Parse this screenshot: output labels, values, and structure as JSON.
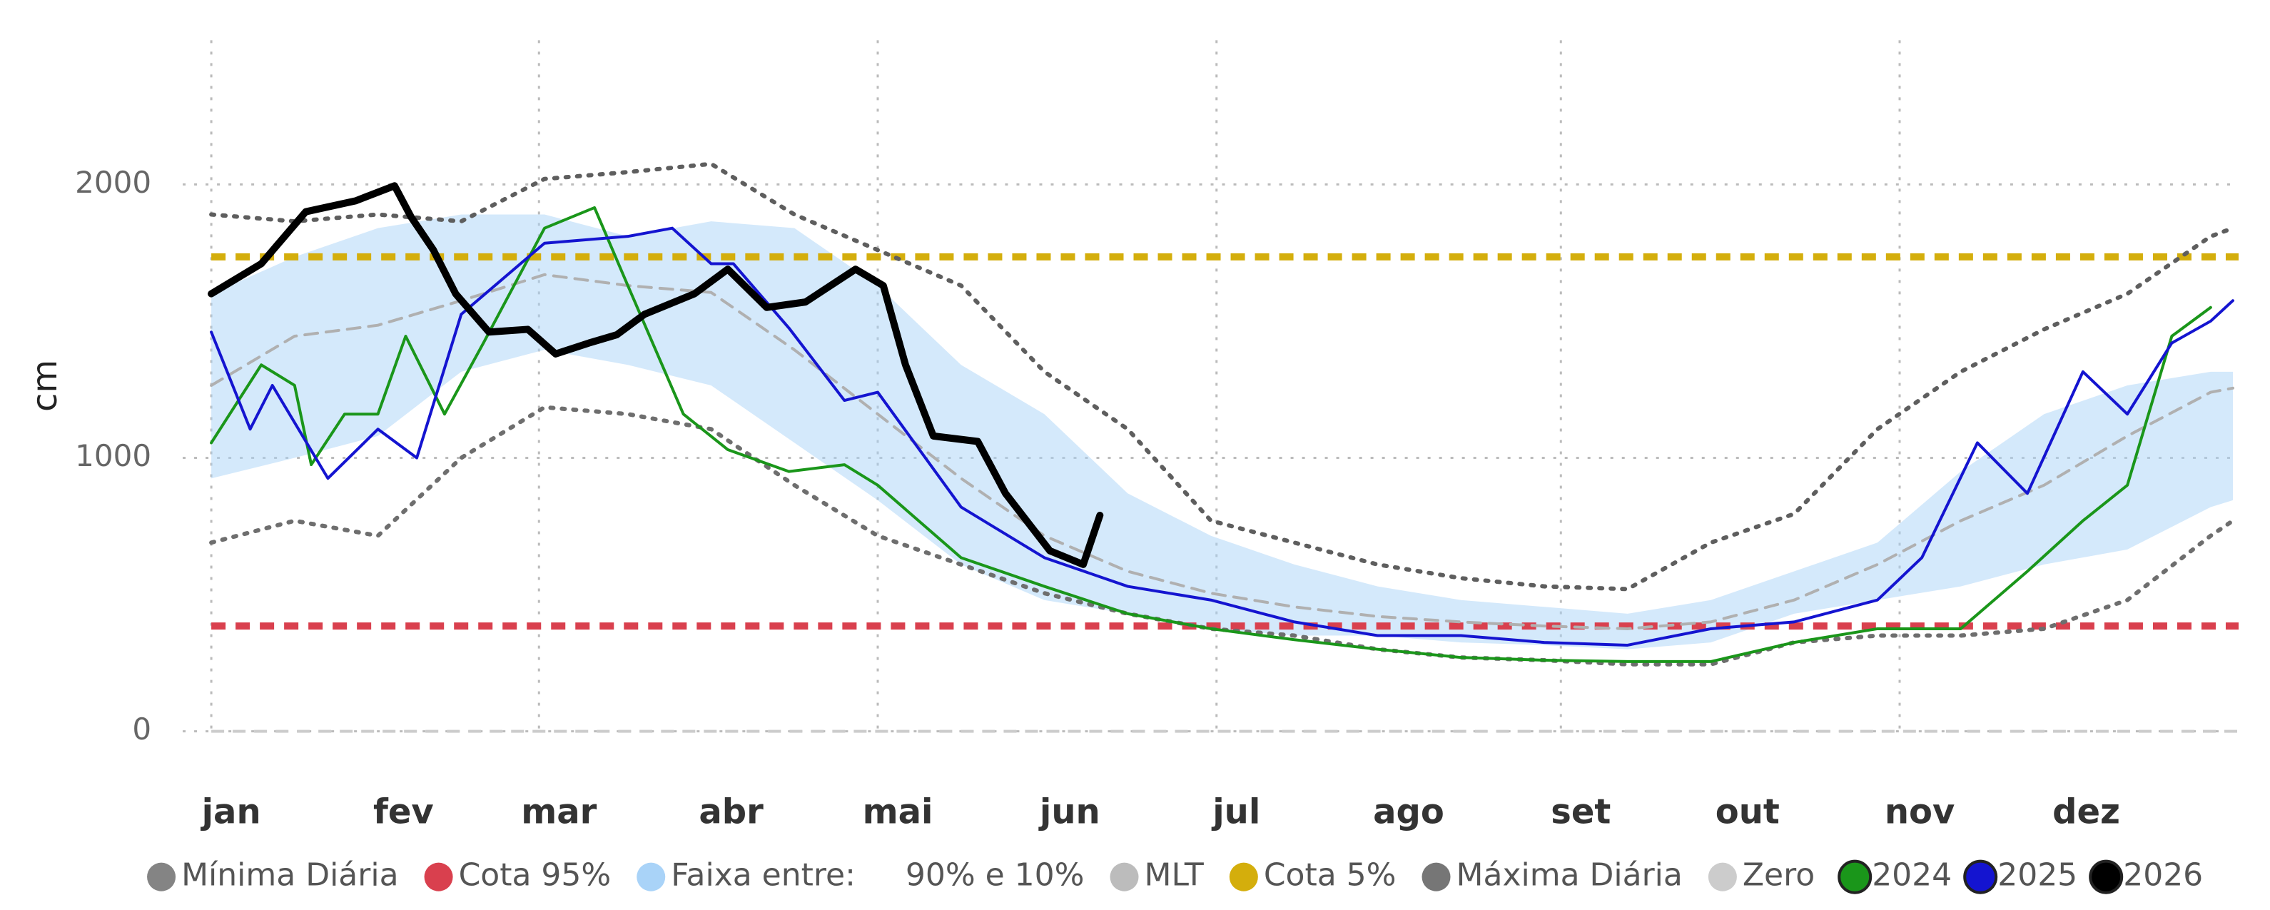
{
  "chart_data": {
    "type": "line",
    "y_label": "cm",
    "xlim": [
      1,
      365
    ],
    "xticks": [
      {
        "value": 1,
        "label": "jan"
      },
      {
        "value": 32,
        "label": "fev"
      },
      {
        "value": 60,
        "label": "mar"
      },
      {
        "value": 91,
        "label": "abr"
      },
      {
        "value": 121,
        "label": "mai"
      },
      {
        "value": 152,
        "label": "jun"
      },
      {
        "value": 182,
        "label": "jul"
      },
      {
        "value": 213,
        "label": "ago"
      },
      {
        "value": 244,
        "label": "set"
      },
      {
        "value": 274,
        "label": "out"
      },
      {
        "value": 305,
        "label": "nov"
      },
      {
        "value": 335,
        "label": "dez"
      }
    ],
    "ylim": [
      0,
      2500
    ],
    "yticks": [
      0,
      1000,
      2000
    ],
    "grid": true,
    "legend": "bottom",
    "series": [
      {
        "name": "Mínima Diária",
        "kind": "line",
        "dash": "dotted",
        "color": "#6e6e6e",
        "x": [
          1,
          16,
          31,
          46,
          61,
          76,
          91,
          106,
          121,
          136,
          151,
          166,
          181,
          196,
          211,
          226,
          241,
          256,
          271,
          286,
          301,
          316,
          331,
          346,
          361,
          365
        ],
        "values": [
          690,
          770,
          715,
          1000,
          1185,
          1160,
          1105,
          900,
          715,
          610,
          505,
          430,
          375,
          350,
          300,
          270,
          260,
          245,
          245,
          325,
          350,
          350,
          375,
          480,
          715,
          770
        ]
      },
      {
        "name": "Cota 95%",
        "kind": "hline",
        "dash": "dashed",
        "color": "#d9404e",
        "value": 385
      },
      {
        "name": "Faixa entre:     90% e 10%",
        "kind": "band",
        "color": "#a9d3f8",
        "x": [
          1,
          16,
          31,
          46,
          61,
          76,
          91,
          106,
          121,
          136,
          151,
          166,
          181,
          196,
          211,
          226,
          241,
          256,
          271,
          286,
          301,
          316,
          331,
          346,
          361,
          365
        ],
        "values": [
          1600,
          1735,
          1840,
          1890,
          1890,
          1810,
          1865,
          1840,
          1630,
          1340,
          1160,
          870,
          715,
          610,
          530,
          480,
          455,
          430,
          480,
          585,
          690,
          950,
          1160,
          1265,
          1315,
          1315
        ],
        "lower": [
          925,
          1000,
          1080,
          1315,
          1395,
          1340,
          1265,
          1055,
          845,
          610,
          480,
          430,
          375,
          350,
          350,
          325,
          315,
          300,
          325,
          430,
          480,
          530,
          610,
          665,
          820,
          845
        ]
      },
      {
        "name": "MLT",
        "kind": "line",
        "dash": "dashed",
        "color": "#b0b0b0",
        "x": [
          1,
          16,
          31,
          46,
          61,
          76,
          91,
          106,
          121,
          136,
          151,
          166,
          181,
          196,
          211,
          226,
          241,
          256,
          271,
          286,
          301,
          316,
          331,
          346,
          361,
          365
        ],
        "values": [
          1265,
          1445,
          1485,
          1575,
          1670,
          1630,
          1605,
          1395,
          1160,
          925,
          715,
          585,
          505,
          455,
          420,
          400,
          385,
          375,
          400,
          480,
          610,
          770,
          900,
          1080,
          1240,
          1255
        ]
      },
      {
        "name": "Cota 5%",
        "kind": "hline",
        "dash": "dashed",
        "color": "#d4ae0c",
        "value": 1735
      },
      {
        "name": "Máxima Diária",
        "kind": "line",
        "dash": "dotted",
        "color": "#5e5e5e",
        "x": [
          1,
          16,
          31,
          46,
          61,
          76,
          91,
          106,
          121,
          136,
          151,
          166,
          181,
          196,
          211,
          226,
          241,
          256,
          271,
          286,
          301,
          316,
          331,
          346,
          361,
          365
        ],
        "values": [
          1890,
          1865,
          1890,
          1865,
          2020,
          2045,
          2075,
          1890,
          1760,
          1630,
          1315,
          1105,
          770,
          690,
          610,
          560,
          530,
          520,
          690,
          795,
          1105,
          1315,
          1470,
          1600,
          1810,
          1840
        ]
      },
      {
        "name": "Zero",
        "kind": "hline",
        "dash": "dashed",
        "color": "#cccccc",
        "value": 0
      },
      {
        "name": "2024",
        "kind": "line",
        "dash": "solid",
        "color": "#1a961a",
        "x": [
          1,
          10,
          16,
          19,
          25,
          31,
          36,
          43,
          50,
          61,
          70,
          76,
          86,
          94,
          105,
          115,
          121,
          136,
          151,
          166,
          181,
          196,
          211,
          226,
          241,
          256,
          271,
          286,
          301,
          316,
          328,
          338,
          346,
          354,
          361
        ],
        "values": [
          1055,
          1340,
          1265,
          975,
          1160,
          1160,
          1445,
          1160,
          1420,
          1840,
          1915,
          1630,
          1160,
          1030,
          950,
          975,
          900,
          635,
          530,
          430,
          375,
          335,
          300,
          270,
          260,
          255,
          255,
          325,
          375,
          375,
          585,
          770,
          900,
          1445,
          1550
        ]
      },
      {
        "name": "2025",
        "kind": "line",
        "dash": "solid",
        "color": "#1414d0",
        "x": [
          1,
          8,
          12,
          22,
          31,
          38,
          46,
          61,
          76,
          84,
          91,
          95,
          105,
          115,
          121,
          136,
          151,
          166,
          181,
          196,
          211,
          226,
          241,
          256,
          271,
          286,
          301,
          309,
          319,
          328,
          338,
          346,
          354,
          361,
          365
        ],
        "values": [
          1460,
          1105,
          1265,
          925,
          1105,
          1000,
          1525,
          1785,
          1810,
          1840,
          1710,
          1710,
          1475,
          1210,
          1240,
          820,
          635,
          530,
          480,
          400,
          350,
          350,
          325,
          315,
          375,
          400,
          480,
          635,
          1055,
          870,
          1315,
          1160,
          1420,
          1500,
          1575
        ]
      },
      {
        "name": "2026",
        "kind": "line",
        "dash": "solid",
        "color": "#000000",
        "width": 5,
        "x": [
          1,
          10,
          18,
          27,
          34,
          37,
          41,
          45,
          51,
          58,
          63,
          69,
          74,
          79,
          88,
          94,
          101,
          108,
          117,
          122,
          126,
          131,
          139,
          144,
          152,
          158,
          161
        ],
        "values": [
          1600,
          1710,
          1900,
          1940,
          1995,
          1880,
          1760,
          1600,
          1460,
          1470,
          1380,
          1420,
          1450,
          1525,
          1600,
          1690,
          1550,
          1570,
          1690,
          1630,
          1340,
          1080,
          1060,
          870,
          660,
          610,
          790
        ]
      }
    ]
  }
}
